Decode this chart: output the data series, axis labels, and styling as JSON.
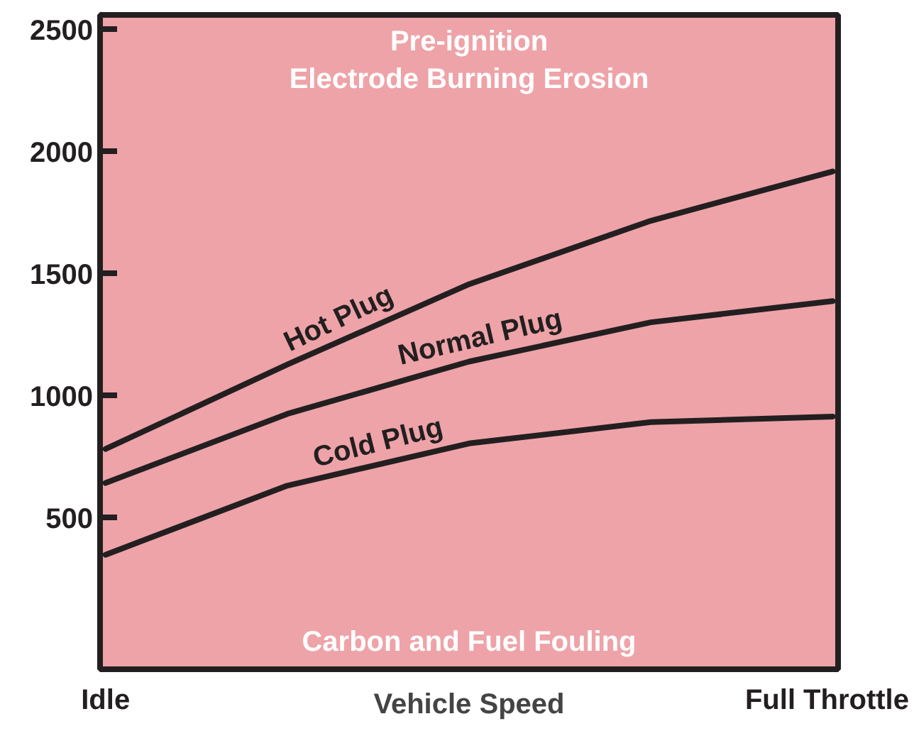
{
  "chart_data": {
    "type": "line",
    "xlabel": "Vehicle Speed",
    "categories": [
      "Idle",
      null,
      null,
      null,
      "Full Throttle"
    ],
    "ylim": [
      -120,
      2560
    ],
    "yticks": [
      500,
      1000,
      1500,
      2000,
      2500
    ],
    "grid": false,
    "marker": "none",
    "line_style": "solid",
    "series": [
      {
        "name": "Hot Plug",
        "color": "#231f20",
        "values": [
          782,
          1128,
          1457,
          1717,
          1919
        ]
      },
      {
        "name": "Normal Plug",
        "color": "#231f20",
        "values": [
          643,
          926,
          1140,
          1301,
          1388
        ]
      },
      {
        "name": "Cold Plug",
        "color": "#231f20",
        "values": [
          349,
          632,
          805,
          892,
          915
        ]
      }
    ],
    "annotations": [
      "Pre-ignition\nElectrode Burning Erosion",
      "Carbon and Fuel Fouling"
    ]
  }
}
